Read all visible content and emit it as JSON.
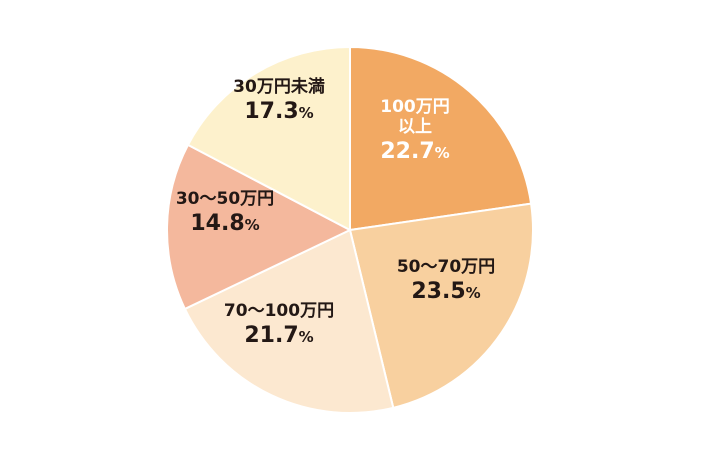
{
  "chart_data": {
    "type": "pie",
    "title": "",
    "start_angle_deg": 0,
    "direction": "clockwise",
    "slices": [
      {
        "label_lines": [
          "100万円",
          "以上"
        ],
        "value": 22.7,
        "value_text": "22.7",
        "pct_symbol": "%",
        "color": "#f2a963",
        "label_color": "#ffffff"
      },
      {
        "label_lines": [
          "50～70万円"
        ],
        "value": 23.5,
        "value_text": "23.5",
        "pct_symbol": "%",
        "color": "#f8d09f",
        "label_color": "#231815"
      },
      {
        "label_lines": [
          "70～100万円"
        ],
        "value": 21.7,
        "value_text": "21.7",
        "pct_symbol": "%",
        "color": "#fce8d0",
        "label_color": "#231815"
      },
      {
        "label_lines": [
          "30～50万円"
        ],
        "value": 14.8,
        "value_text": "14.8",
        "pct_symbol": "%",
        "color": "#f4b89d",
        "label_color": "#231815"
      },
      {
        "label_lines": [
          "30万円未満"
        ],
        "value": 17.3,
        "value_text": "17.3",
        "pct_symbol": "%",
        "color": "#fdf1cc",
        "label_color": "#231815"
      }
    ]
  }
}
